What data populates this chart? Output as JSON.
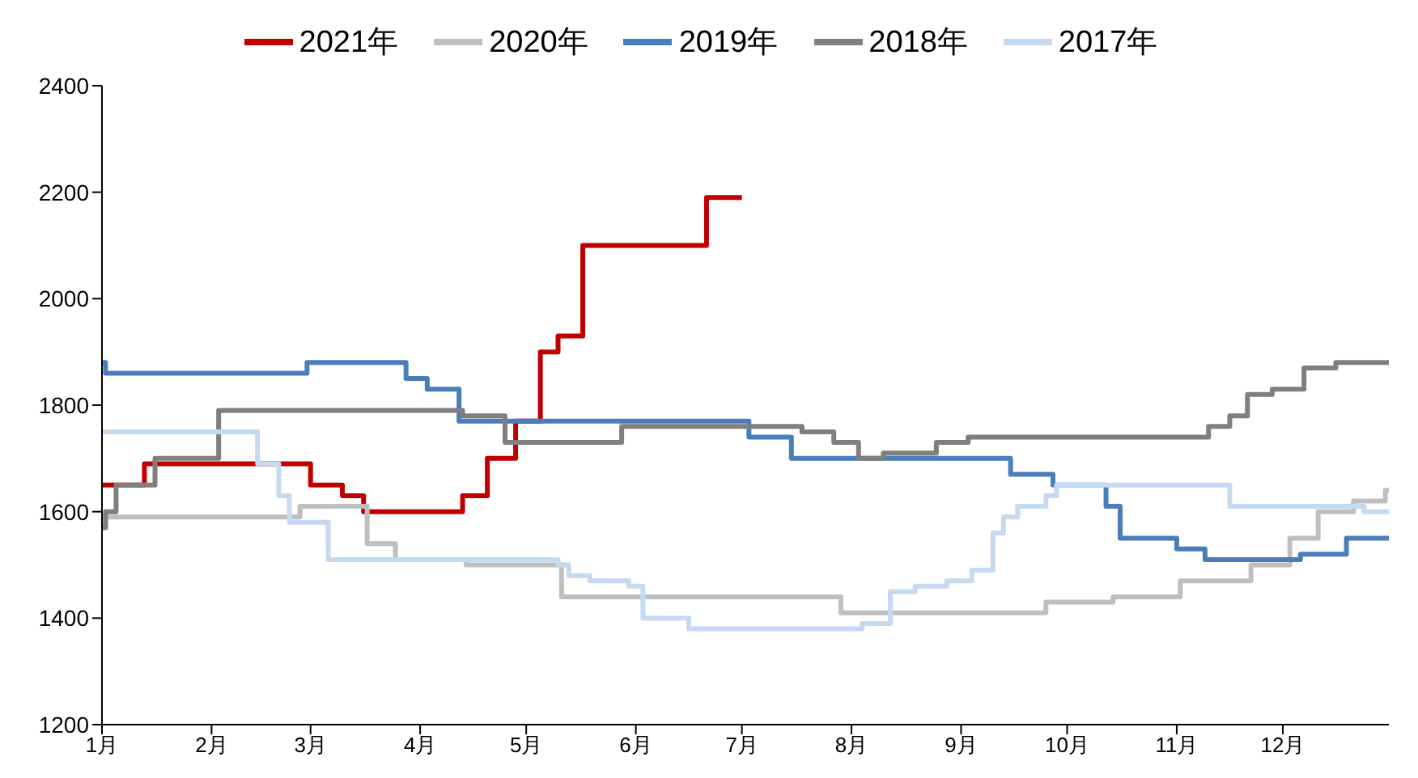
{
  "chart_data": {
    "type": "step",
    "legend": "top",
    "grid": false,
    "marker": "none",
    "line_style": "solid",
    "xlim": [
      "--01-01",
      "--12-31"
    ],
    "xticks": [
      {
        "value": "--01-01",
        "label": "1月"
      },
      {
        "value": "--02-01",
        "label": "2月"
      },
      {
        "value": "--03-01",
        "label": "3月"
      },
      {
        "value": "--04-01",
        "label": "4月"
      },
      {
        "value": "--05-01",
        "label": "5月"
      },
      {
        "value": "--06-01",
        "label": "6月"
      },
      {
        "value": "--07-01",
        "label": "7月"
      },
      {
        "value": "--08-01",
        "label": "8月"
      },
      {
        "value": "--09-01",
        "label": "9月"
      },
      {
        "value": "--10-01",
        "label": "10月"
      },
      {
        "value": "--11-01",
        "label": "11月"
      },
      {
        "value": "--12-01",
        "label": "12月"
      }
    ],
    "ylim": [
      1200,
      2400
    ],
    "yticks": [
      1200,
      1400,
      1600,
      1800,
      2000,
      2200,
      2400
    ],
    "series": [
      {
        "name": "2021年",
        "color": "#c00000",
        "x": [
          "--01-01",
          "--01-13",
          "--03-01",
          "--03-10",
          "--03-16",
          "--04-13",
          "--04-20",
          "--04-28",
          "--05-05",
          "--05-10",
          "--05-17",
          "--06-21",
          "--07-01"
        ],
        "values": [
          1650,
          1690,
          1650,
          1630,
          1600,
          1630,
          1700,
          1770,
          1900,
          1930,
          2100,
          2190,
          2190
        ]
      },
      {
        "name": "2020年",
        "color": "#bfbfbf",
        "x": [
          "--01-01",
          "--01-02",
          "--02-26",
          "--03-17",
          "--03-25",
          "--04-14",
          "--05-11",
          "--07-29",
          "--09-25",
          "--10-14",
          "--11-02",
          "--11-22",
          "--12-03",
          "--12-11",
          "--12-21",
          "--12-30",
          "--12-31"
        ],
        "values": [
          1570,
          1590,
          1610,
          1540,
          1510,
          1500,
          1440,
          1410,
          1430,
          1440,
          1470,
          1500,
          1550,
          1600,
          1620,
          1640,
          1640
        ]
      },
      {
        "name": "2019年",
        "color": "#4a7ebb",
        "x": [
          "--01-01",
          "--01-02",
          "--02-28",
          "--03-28",
          "--04-03",
          "--04-12",
          "--07-03",
          "--07-15",
          "--09-15",
          "--09-27",
          "--10-12",
          "--10-16",
          "--11-01",
          "--11-09",
          "--12-06",
          "--12-19",
          "--12-31"
        ],
        "values": [
          1880,
          1860,
          1880,
          1850,
          1830,
          1770,
          1740,
          1700,
          1670,
          1650,
          1610,
          1550,
          1530,
          1510,
          1520,
          1550,
          1550
        ]
      },
      {
        "name": "2018年",
        "color": "#7f7f7f",
        "x": [
          "--01-01",
          "--01-02",
          "--01-05",
          "--01-16",
          "--02-03",
          "--04-13",
          "--04-25",
          "--05-28",
          "--07-18",
          "--07-27",
          "--08-03",
          "--08-10",
          "--08-25",
          "--09-03",
          "--11-10",
          "--11-16",
          "--11-21",
          "--11-28",
          "--12-07",
          "--12-16",
          "--12-31"
        ],
        "values": [
          1570,
          1600,
          1650,
          1700,
          1790,
          1780,
          1730,
          1760,
          1750,
          1730,
          1700,
          1710,
          1730,
          1740,
          1760,
          1780,
          1820,
          1830,
          1870,
          1880,
          1880
        ]
      },
      {
        "name": "2017年",
        "color": "#c5d9f1",
        "x": [
          "--01-01",
          "--02-14",
          "--02-20",
          "--02-23",
          "--03-06",
          "--05-10",
          "--05-13",
          "--05-19",
          "--05-30",
          "--06-03",
          "--06-16",
          "--08-04",
          "--08-12",
          "--08-19",
          "--08-28",
          "--09-04",
          "--09-10",
          "--09-13",
          "--09-17",
          "--09-25",
          "--09-28",
          "--11-16",
          "--12-24",
          "--12-31"
        ],
        "values": [
          1750,
          1690,
          1630,
          1580,
          1510,
          1500,
          1480,
          1470,
          1460,
          1400,
          1380,
          1390,
          1450,
          1460,
          1470,
          1490,
          1560,
          1590,
          1610,
          1630,
          1650,
          1610,
          1600,
          1600
        ]
      }
    ]
  }
}
